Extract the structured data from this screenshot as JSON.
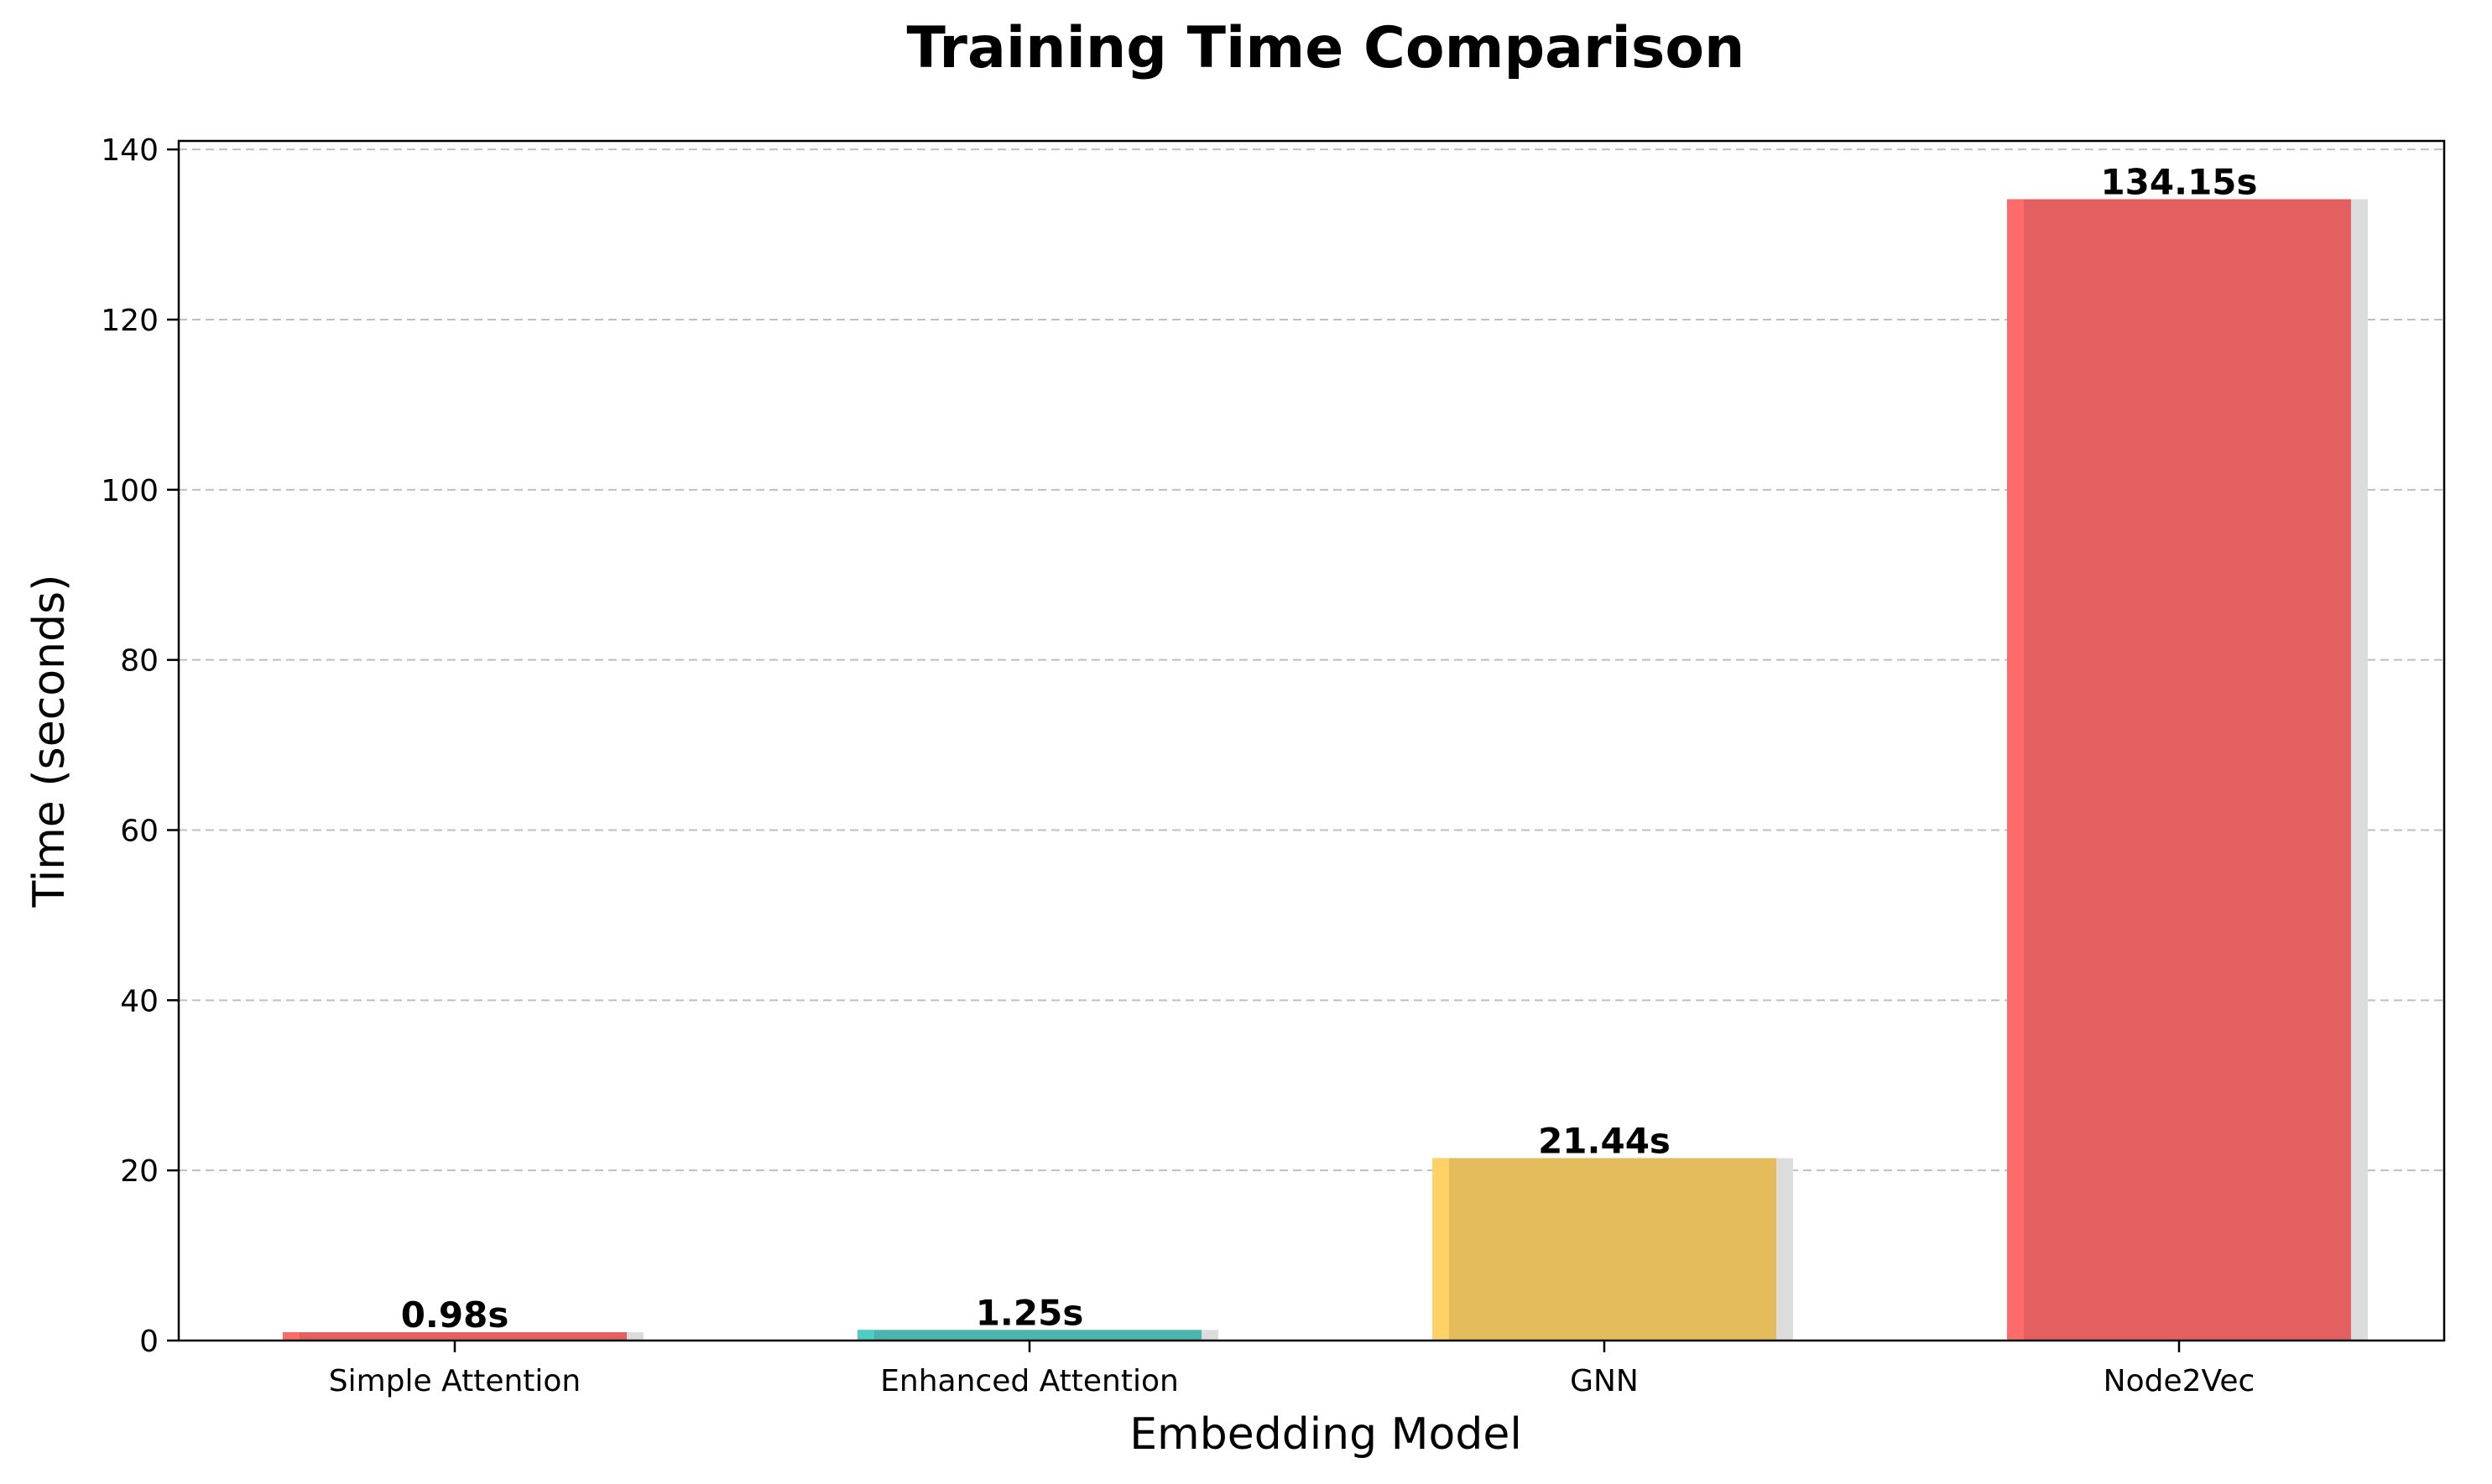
{
  "chart_data": {
    "type": "bar",
    "title": "Training Time Comparison",
    "xlabel": "Embedding Model",
    "ylabel": "Time (seconds)",
    "categories": [
      "Simple Attention",
      "Enhanced Attention",
      "GNN",
      "Node2Vec"
    ],
    "values": [
      0.98,
      1.25,
      21.44,
      134.15
    ],
    "value_labels": [
      "0.98s",
      "1.25s",
      "21.44s",
      "134.15s"
    ],
    "bar_colors": [
      "#e46060",
      "#4ab5ae",
      "#e5bc5c",
      "#e46060"
    ],
    "bar_edge_colors": [
      "#ff6b6b",
      "#4ecdc4",
      "#ffd166",
      "#ff6b6b"
    ],
    "shadow_color": "#dcdcdc",
    "ylim": [
      0,
      141
    ],
    "yticks": [
      0,
      20,
      40,
      60,
      80,
      100,
      120,
      140
    ],
    "grid": true,
    "grid_axis": "y",
    "grid_color": "#bfbfbf"
  }
}
